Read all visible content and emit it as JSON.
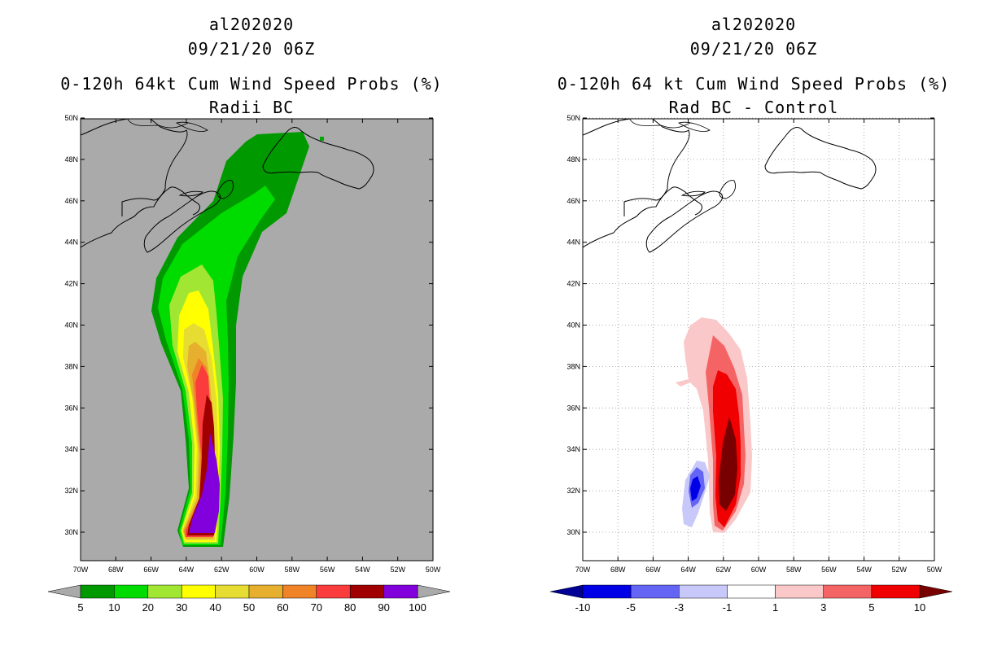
{
  "panels": [
    {
      "id": "left",
      "storm_id": "al202020",
      "datetime": "09/21/20 06Z",
      "title_line1": "0-120h 64kt Cum Wind Speed Probs (%)",
      "title_line2": "Radii BC",
      "background_color": "#aaaaaa",
      "colorbar": {
        "colors": [
          "#009a00",
          "#00dc00",
          "#a0e632",
          "#ffff00",
          "#e6dc32",
          "#e6af2d",
          "#f08228",
          "#fa3c3c",
          "#a00000",
          "#8200dc"
        ],
        "labels": [
          "5",
          "10",
          "20",
          "30",
          "40",
          "50",
          "60",
          "70",
          "80",
          "90",
          "100"
        ],
        "under_color": "#aaaaaa",
        "over_color": "#aaaaaa"
      }
    },
    {
      "id": "right",
      "storm_id": "al202020",
      "datetime": "09/21/20 06Z",
      "title_line1": "0-120h 64 kt Cum Wind Speed Probs (%)",
      "title_line2": "Rad BC - Control",
      "background_color": "#ffffff",
      "colorbar": {
        "colors": [
          "#0000e6",
          "#6464f5",
          "#c8c8fa",
          "#ffffff",
          "#fac8c8",
          "#f56464",
          "#f00000"
        ],
        "labels": [
          "-10",
          "-5",
          "-3",
          "-1",
          "1",
          "3",
          "5",
          "10"
        ],
        "under_color": "#000096",
        "over_color": "#780000"
      }
    }
  ],
  "axes": {
    "lat_labels": [
      "30N",
      "32N",
      "34N",
      "36N",
      "38N",
      "40N",
      "42N",
      "44N",
      "46N",
      "48N",
      "50N"
    ],
    "lon_labels": [
      "70W",
      "68W",
      "66W",
      "64W",
      "62W",
      "60W",
      "58W",
      "56W",
      "54W",
      "52W",
      "50W"
    ]
  }
}
